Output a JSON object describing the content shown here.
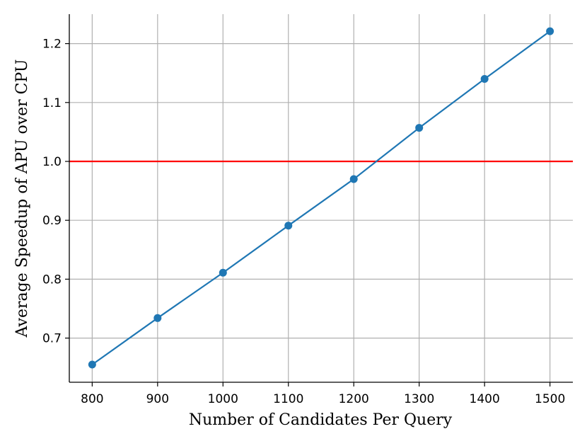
{
  "chart_data": {
    "type": "line",
    "title": "",
    "xlabel": "Number of Candidates Per Query",
    "ylabel": "Average Speedup of APU over CPU",
    "x": [
      800,
      900,
      1000,
      1100,
      1200,
      1300,
      1400,
      1500
    ],
    "xticks": [
      "800",
      "900",
      "1000",
      "1100",
      "1200",
      "1300",
      "1400",
      "1500"
    ],
    "yticks": [
      "0.7",
      "0.8",
      "0.9",
      "1.0",
      "1.1",
      "1.2"
    ],
    "xlim": [
      765,
      1535
    ],
    "ylim": [
      0.625,
      1.25
    ],
    "grid": true,
    "series": [
      {
        "values": [
          0.655,
          0.734,
          0.811,
          0.891,
          0.97,
          1.057,
          1.14,
          1.221
        ],
        "color": "#1f77b4",
        "marker": "circle"
      }
    ],
    "reference_line": {
      "y": 1.0,
      "color": "#ff0000"
    }
  }
}
